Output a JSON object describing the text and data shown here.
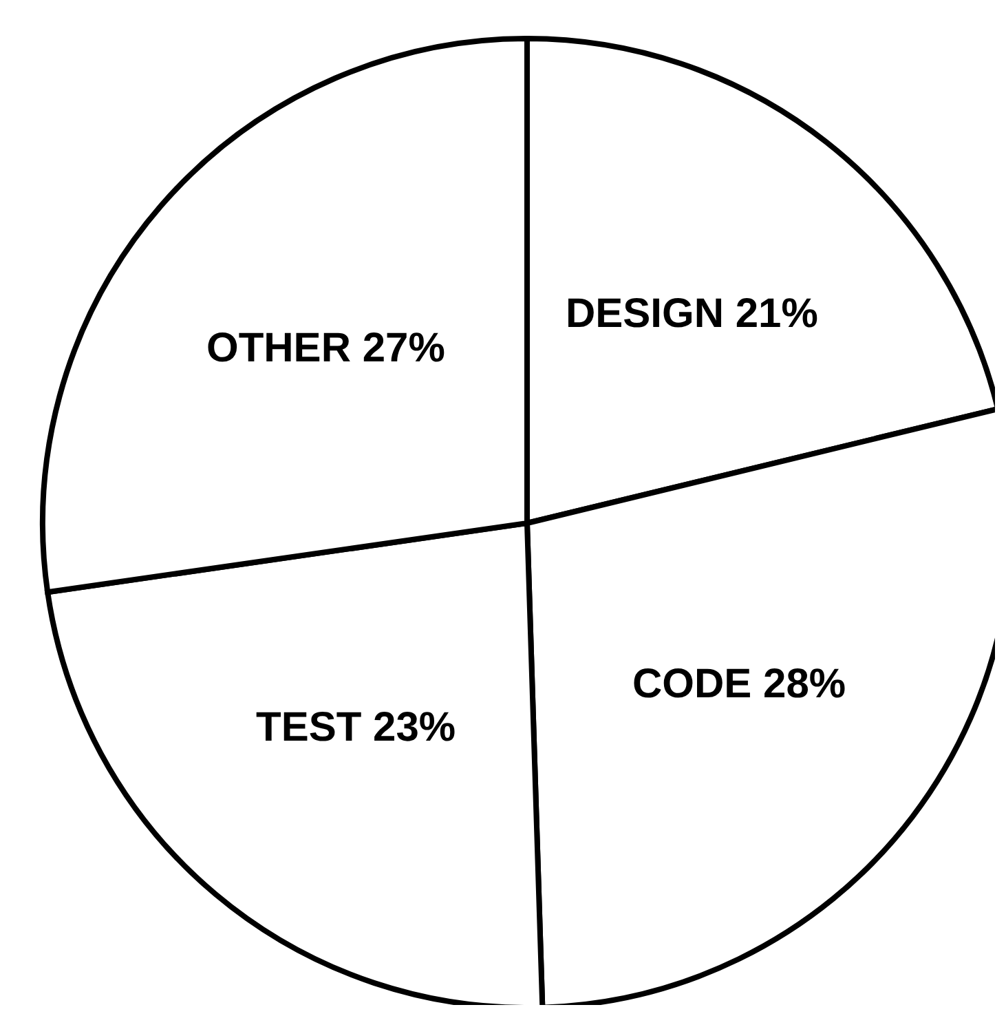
{
  "chart_data": {
    "type": "pie",
    "categories": [
      "DESIGN",
      "CODE",
      "TEST",
      "OTHER"
    ],
    "values": [
      21,
      28,
      23,
      27
    ],
    "value_labels": [
      "21%",
      "28%",
      "23%",
      "27%"
    ],
    "colors": [
      "#ffffff",
      "#ffffff",
      "#ffffff",
      "#ffffff"
    ]
  }
}
